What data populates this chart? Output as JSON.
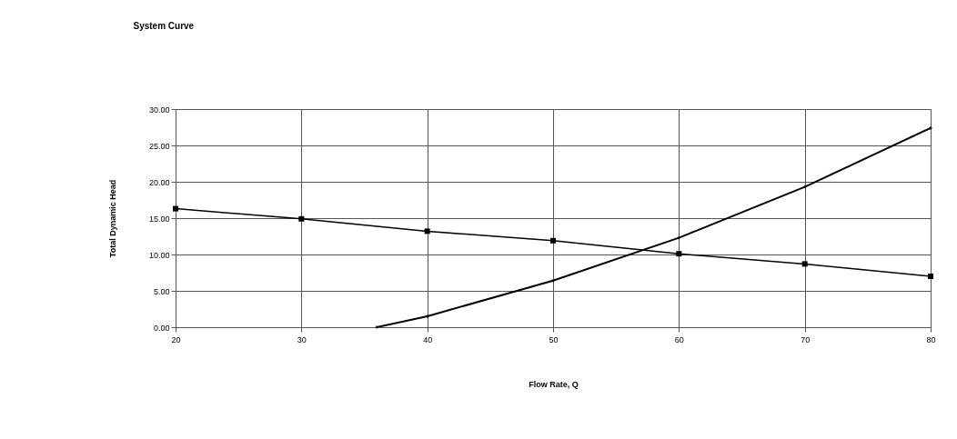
{
  "chart_data": {
    "type": "line",
    "title": "System Curve",
    "xlabel": "Flow Rate, Q",
    "ylabel": "Total Dynamic Head",
    "xlim": [
      20,
      80
    ],
    "xticks": [
      20,
      30,
      40,
      50,
      60,
      70,
      80
    ],
    "ylim": [
      0,
      30
    ],
    "yticks": [
      {
        "value": 0,
        "label": "0.00"
      },
      {
        "value": 5,
        "label": "5.00"
      },
      {
        "value": 10,
        "label": "10.00"
      },
      {
        "value": 15,
        "label": "15.00"
      },
      {
        "value": 20,
        "label": "20.00"
      },
      {
        "value": 25,
        "label": "25.00"
      },
      {
        "value": 30,
        "label": "30.00"
      }
    ],
    "grid": true,
    "line_style": "solid",
    "series": [
      {
        "color": "#000000",
        "marker": "square",
        "x": [
          20,
          30,
          40,
          50,
          60,
          70,
          80
        ],
        "values": [
          16.3,
          14.9,
          13.2,
          11.9,
          10.1,
          8.7,
          7.0
        ]
      },
      {
        "color": "#000000",
        "marker": "diamond",
        "x": [
          36,
          40,
          50,
          60,
          70,
          80
        ],
        "values": [
          0,
          1.5,
          6.4,
          12.3,
          19.3,
          27.4
        ]
      }
    ]
  }
}
